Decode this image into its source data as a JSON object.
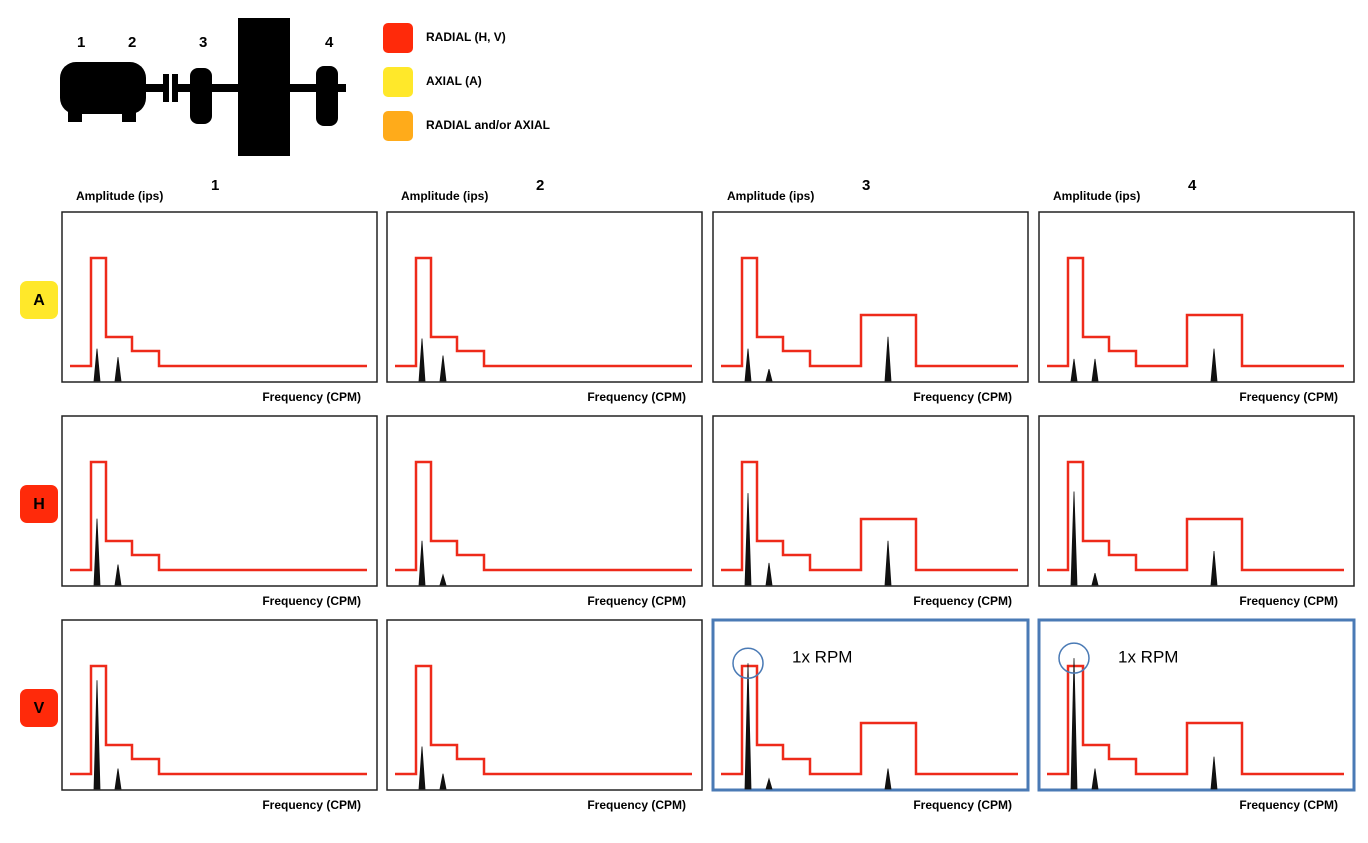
{
  "machine": {
    "labels": [
      "1",
      "2",
      "3",
      "4"
    ]
  },
  "legend": [
    {
      "label": "RADIAL  (H, V)",
      "color": "#ff2a0a"
    },
    {
      "label": "AXIAL  (A)",
      "color": "#ffe82a"
    },
    {
      "label": "RADIAL and/or AXIAL",
      "color": "#ffab1a"
    }
  ],
  "columns": [
    {
      "label": "1",
      "y_axis": "Amplitude (ips)"
    },
    {
      "label": "2",
      "y_axis": "Amplitude (ips)"
    },
    {
      "label": "3",
      "y_axis": "Amplitude (ips)"
    },
    {
      "label": "4",
      "y_axis": "Amplitude (ips)"
    }
  ],
  "rows": [
    {
      "label": "A",
      "color": "#ffe82a"
    },
    {
      "label": "H",
      "color": "#ff2a0a"
    },
    {
      "label": "V",
      "color": "#ff2a0a"
    }
  ],
  "x_axis": "Frequency (CPM)",
  "envelope_color": "#ee2a1a",
  "highlight_color": "#4a7ab5",
  "panels": [
    [
      {
        "peaks": [
          19,
          14
        ]
      },
      {
        "peaks": [
          25,
          15
        ]
      },
      {
        "peaks": [
          19,
          7,
          26
        ]
      },
      {
        "peaks": [
          13,
          13,
          19
        ]
      }
    ],
    [
      {
        "peaks": [
          39,
          12
        ]
      },
      {
        "peaks": [
          26,
          6
        ]
      },
      {
        "peaks": [
          54,
          13,
          26
        ]
      },
      {
        "peaks": [
          55,
          7,
          20
        ]
      }
    ],
    [
      {
        "peaks": [
          64,
          12
        ]
      },
      {
        "peaks": [
          25,
          9
        ]
      },
      {
        "peaks": [
          74,
          6,
          12
        ],
        "note": "1x RPM"
      },
      {
        "peaks": [
          77,
          12,
          19
        ],
        "note": "1x RPM"
      }
    ]
  ]
}
